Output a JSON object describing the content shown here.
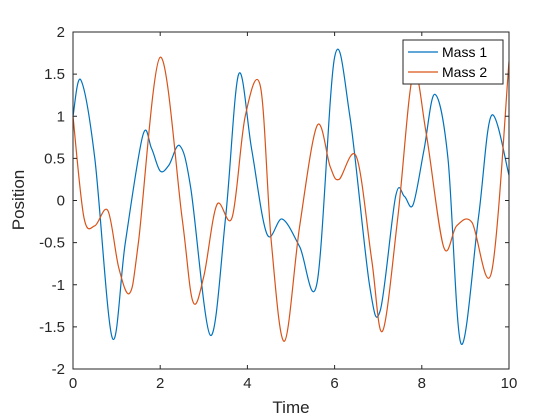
{
  "chart_data": {
    "type": "line",
    "xlabel": "Time",
    "ylabel": "Position",
    "xlim": [
      0,
      10
    ],
    "ylim": [
      -2,
      2
    ],
    "xticks": [
      0,
      2,
      4,
      6,
      8,
      10
    ],
    "yticks": [
      -2,
      -1.5,
      -1,
      -0.5,
      0,
      0.5,
      1,
      1.5,
      2
    ],
    "grid": false,
    "legend_position": "top-right",
    "series": [
      {
        "name": "Mass 1",
        "color": "#0072BD",
        "x": [
          0,
          0.18,
          0.5,
          0.9,
          1.2,
          1.6,
          1.8,
          2.0,
          2.2,
          2.45,
          2.7,
          3.15,
          3.5,
          3.8,
          4.1,
          4.45,
          4.8,
          5.2,
          5.6,
          6.0,
          6.35,
          6.8,
          7.05,
          7.4,
          7.6,
          7.8,
          8.05,
          8.3,
          8.6,
          8.9,
          9.3,
          9.6,
          10.0
        ],
        "y": [
          1.0,
          1.43,
          0.5,
          -1.63,
          -0.5,
          0.77,
          0.62,
          0.35,
          0.42,
          0.65,
          0.15,
          -1.6,
          -0.2,
          1.5,
          0.6,
          -0.4,
          -0.22,
          -0.55,
          -0.97,
          1.7,
          1.0,
          -1.0,
          -1.3,
          0.05,
          0.05,
          -0.05,
          0.6,
          1.26,
          0.5,
          -1.7,
          -0.2,
          1.01,
          0.3
        ]
      },
      {
        "name": "Mass 2",
        "color": "#D95319",
        "x": [
          0,
          0.25,
          0.5,
          0.8,
          1.05,
          1.3,
          1.5,
          2.0,
          2.5,
          2.75,
          3.0,
          3.3,
          3.65,
          3.95,
          4.3,
          4.55,
          4.85,
          5.2,
          5.6,
          5.9,
          6.1,
          6.5,
          6.85,
          7.1,
          7.45,
          7.8,
          8.1,
          8.5,
          8.8,
          9.15,
          9.6,
          10.0
        ],
        "y": [
          1.0,
          -0.2,
          -0.3,
          -0.12,
          -0.8,
          -1.1,
          -0.5,
          1.7,
          -0.2,
          -1.2,
          -0.9,
          -0.05,
          -0.2,
          1.0,
          1.35,
          -0.5,
          -1.67,
          -0.3,
          0.89,
          0.4,
          0.25,
          0.52,
          -0.7,
          -1.55,
          -0.2,
          1.5,
          0.8,
          -0.55,
          -0.3,
          -0.26,
          -0.85,
          1.65
        ]
      }
    ]
  }
}
